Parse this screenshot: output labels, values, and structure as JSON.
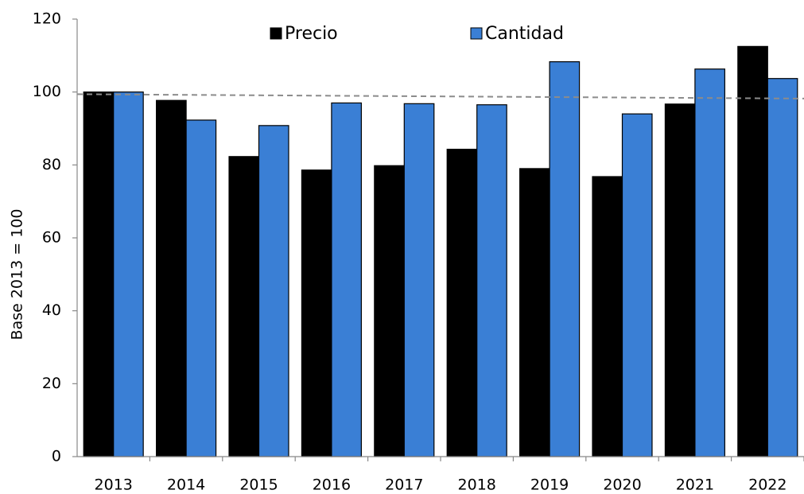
{
  "chart_data": {
    "type": "bar",
    "categories": [
      "2013",
      "2014",
      "2015",
      "2016",
      "2017",
      "2018",
      "2019",
      "2020",
      "2021",
      "2022"
    ],
    "series": [
      {
        "name": "Precio",
        "color": "#000000",
        "values": [
          100,
          97.7,
          82.3,
          78.6,
          79.8,
          84.3,
          79,
          76.8,
          96.7,
          112.5
        ]
      },
      {
        "name": "Cantidad",
        "color": "#3a7fd5",
        "values": [
          100,
          92.3,
          90.8,
          97,
          96.8,
          96.5,
          108.3,
          94,
          106.3,
          103.7
        ]
      }
    ],
    "trendline": {
      "color": "#8c8c8c",
      "values": [
        99.4,
        98.2
      ]
    },
    "y_label": "Base 2013 = 100",
    "ylim": [
      0,
      120
    ],
    "yticks": [
      0,
      20,
      40,
      60,
      80,
      100,
      120
    ],
    "grid": false,
    "legend": "top"
  }
}
